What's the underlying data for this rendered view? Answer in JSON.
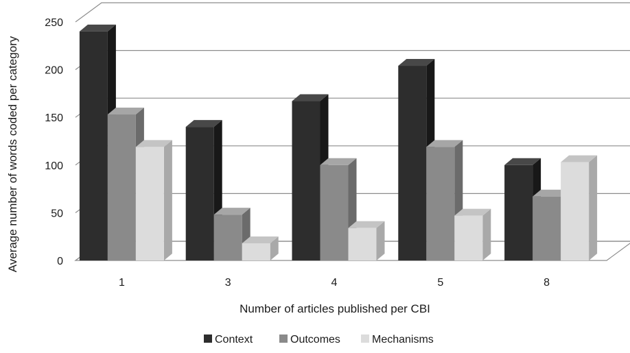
{
  "chart_data": {
    "type": "bar",
    "title": "",
    "xlabel": "Number of articles published per CBI",
    "ylabel": "Average number of words coded per category",
    "categories": [
      "1",
      "3",
      "4",
      "5",
      "8"
    ],
    "ylim": [
      0,
      250
    ],
    "yticks": [
      "0",
      "50",
      "100",
      "150",
      "200",
      "250"
    ],
    "grid": true,
    "legend_position": "bottom",
    "style": "3d-clustered-column",
    "series": [
      {
        "name": "Context",
        "values": [
          240,
          140,
          167,
          204,
          100
        ],
        "color": "#2d2d2d",
        "side_color": "#181818",
        "top_color": "#484848"
      },
      {
        "name": "Outcomes",
        "values": [
          153,
          48,
          100,
          119,
          67
        ],
        "color": "#8a8a8a",
        "side_color": "#6b6b6b",
        "top_color": "#a6a6a6"
      },
      {
        "name": "Mechanisms",
        "values": [
          119,
          18,
          34,
          47,
          103
        ],
        "color": "#dcdcdc",
        "side_color": "#a9a9a9",
        "top_color": "#c4c4c4"
      }
    ]
  }
}
